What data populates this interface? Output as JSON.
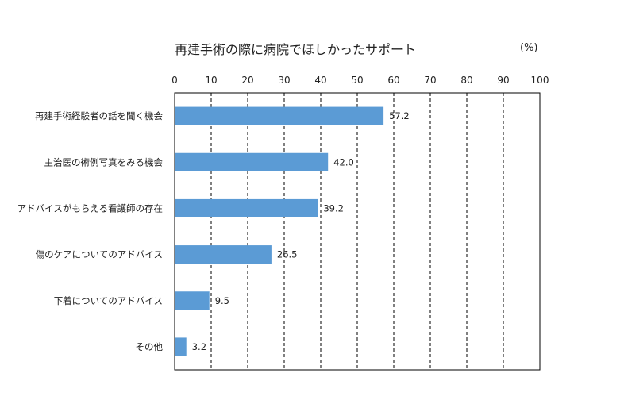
{
  "chart_data": {
    "type": "bar",
    "orientation": "horizontal",
    "title": "再建手術の際に病院でほしかったサポート",
    "unit": "(%)",
    "categories": [
      "再建手術経験者の話を聞く機会",
      "主治医の術例写真をみる機会",
      "アドバイスがもらえる看護師の存在",
      "傷のケアについてのアドバイス",
      "下着についてのアドバイス",
      "その他"
    ],
    "values": [
      57.2,
      42.0,
      39.2,
      26.5,
      9.5,
      3.2
    ],
    "data_labels": [
      "57.2",
      "42.0",
      "39.2",
      "26.5",
      "9.5",
      "3.2"
    ],
    "xlim": [
      0,
      100
    ],
    "x_ticks": [
      "0",
      "10",
      "20",
      "30",
      "40",
      "50",
      "60",
      "70",
      "80",
      "90",
      "100"
    ],
    "xaxis_position": "top",
    "grid": "vertical dashed",
    "bar_color": "#5b9bd5"
  }
}
